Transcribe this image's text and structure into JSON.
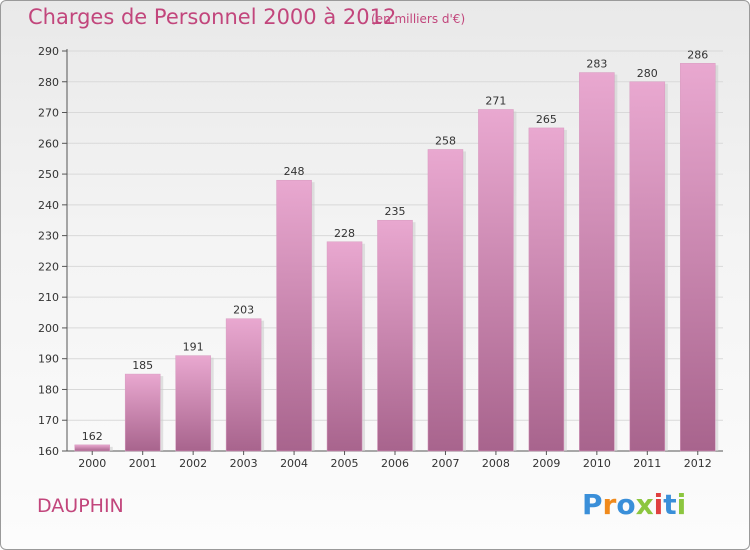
{
  "header": {
    "title": "Charges de Personnel 2000 à 2012",
    "subtitle": "(en milliers d'€)"
  },
  "footer": {
    "commune": "DAUPHIN",
    "logo_letters": [
      "P",
      "r",
      "o",
      "x",
      "i",
      "t",
      "i"
    ]
  },
  "colors": {
    "title": "#c2467c",
    "bar_top": "#e9a8d0",
    "bar_bottom": "#a8648d",
    "grid": "#d9d9d9",
    "logo": [
      "#3a8fd9",
      "#f08a1c",
      "#3a8fd9",
      "#8cc63f",
      "#e04040",
      "#3a8fd9",
      "#8cc63f"
    ]
  },
  "chart_data": {
    "type": "bar",
    "title": "Charges de Personnel 2000 à 2012",
    "subtitle": "(en milliers d'€)",
    "categories": [
      "2000",
      "2001",
      "2002",
      "2003",
      "2004",
      "2005",
      "2006",
      "2007",
      "2008",
      "2009",
      "2010",
      "2011",
      "2012"
    ],
    "values": [
      162,
      185,
      191,
      203,
      248,
      228,
      235,
      258,
      271,
      265,
      283,
      280,
      286
    ],
    "ylim": [
      160,
      290
    ],
    "yticks": [
      160,
      170,
      180,
      190,
      200,
      210,
      220,
      230,
      240,
      250,
      260,
      270,
      280,
      290
    ],
    "grid": true,
    "xlabel": "",
    "ylabel": ""
  }
}
